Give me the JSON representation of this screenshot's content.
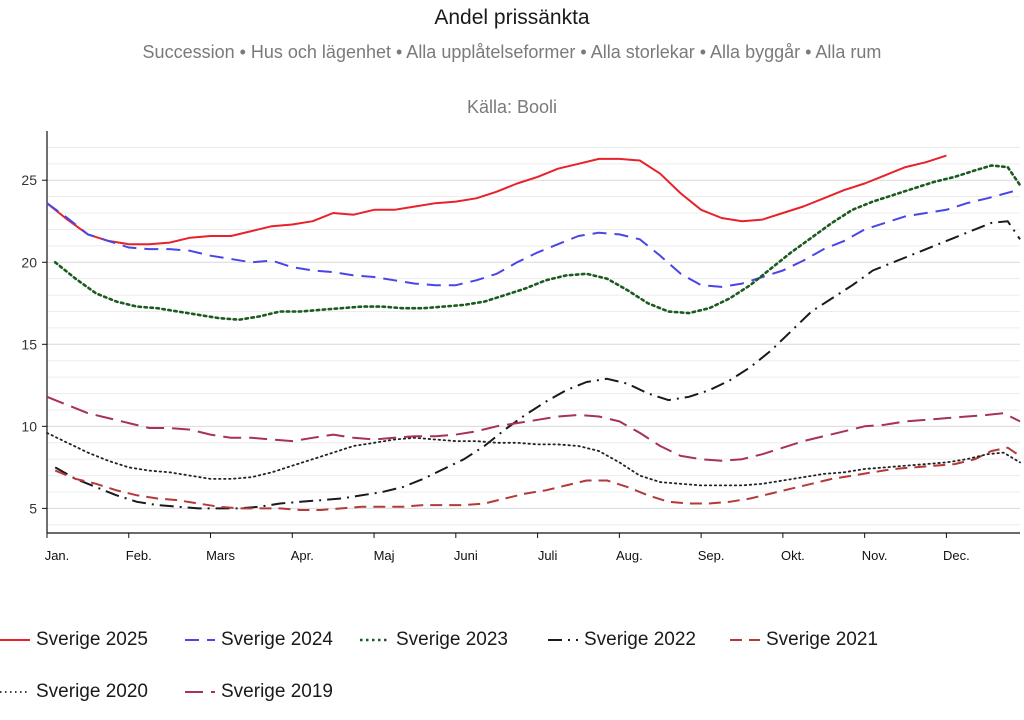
{
  "chart_data": {
    "type": "line",
    "title": "Andel prissänkta",
    "subtitle": "Succession • Hus och lägenhet • Alla upplåtelseformer • Alla storlekar • Alla byggår • Alla rum",
    "source": "Källa: Booli",
    "xlabel": "",
    "ylabel": "",
    "xlim": [
      0,
      11.9
    ],
    "ylim": [
      3.5,
      28
    ],
    "yticks": [
      5,
      10,
      15,
      20,
      25
    ],
    "grid": true,
    "categories": [
      "Jan.",
      "Feb.",
      "Mars",
      "Apr.",
      "Maj",
      "Juni",
      "Juli",
      "Aug.",
      "Sep.",
      "Okt.",
      "Nov.",
      "Dec."
    ],
    "legend_position": "bottom",
    "series": [
      {
        "name": "Sverige 2025",
        "color": "#e8222a",
        "dash": "solid",
        "x": [
          0,
          0.25,
          0.5,
          0.75,
          1,
          1.25,
          1.5,
          1.75,
          2,
          2.25,
          2.5,
          2.75,
          3,
          3.25,
          3.5,
          3.75,
          4,
          4.25,
          4.5,
          4.75,
          5,
          5.25,
          5.5,
          5.75,
          6,
          6.25,
          6.5,
          6.75,
          7,
          7.25,
          7.5,
          7.75,
          8,
          8.25,
          8.5,
          8.75,
          9,
          9.25,
          9.5,
          9.75,
          10,
          10.25,
          10.5,
          10.75,
          11
        ],
        "values": [
          23.6,
          22.6,
          21.7,
          21.3,
          21.1,
          21.1,
          21.2,
          21.5,
          21.6,
          21.6,
          21.9,
          22.2,
          22.3,
          22.5,
          23.0,
          22.9,
          23.2,
          23.2,
          23.4,
          23.6,
          23.7,
          23.9,
          24.3,
          24.8,
          25.2,
          25.7,
          26.0,
          26.3,
          26.3,
          26.2,
          25.4,
          24.2,
          23.2,
          22.7,
          22.5,
          22.6,
          23.0,
          23.4,
          23.9,
          24.4,
          24.8,
          25.3,
          25.8,
          26.1,
          26.5
        ]
      },
      {
        "name": "Sverige 2024",
        "color": "#4a45e6",
        "dash": "dash",
        "x": [
          0,
          0.25,
          0.5,
          0.75,
          1,
          1.25,
          1.5,
          1.75,
          2,
          2.25,
          2.5,
          2.75,
          3,
          3.25,
          3.5,
          3.75,
          4,
          4.25,
          4.5,
          4.75,
          5,
          5.25,
          5.5,
          5.75,
          6,
          6.25,
          6.5,
          6.75,
          7,
          7.25,
          7.5,
          7.75,
          8,
          8.25,
          8.5,
          8.75,
          9,
          9.25,
          9.5,
          9.75,
          10,
          10.25,
          10.5,
          10.75,
          11,
          11.25,
          11.5,
          11.65,
          11.8,
          11.9
        ],
        "values": [
          23.6,
          22.7,
          21.7,
          21.3,
          20.9,
          20.8,
          20.8,
          20.7,
          20.4,
          20.2,
          20.0,
          20.1,
          19.7,
          19.5,
          19.4,
          19.2,
          19.1,
          18.9,
          18.7,
          18.6,
          18.6,
          18.9,
          19.3,
          20.0,
          20.6,
          21.1,
          21.6,
          21.8,
          21.7,
          21.4,
          20.4,
          19.3,
          18.6,
          18.5,
          18.7,
          19.1,
          19.5,
          20.1,
          20.8,
          21.3,
          22.0,
          22.4,
          22.8,
          23.0,
          23.2,
          23.6,
          23.9,
          24.1,
          24.3,
          24.5
        ]
      },
      {
        "name": "Sverige 2023",
        "color": "#1a5c1e",
        "dash": "dot",
        "x": [
          0.1,
          0.35,
          0.6,
          0.85,
          1.1,
          1.35,
          1.6,
          1.85,
          2.1,
          2.35,
          2.6,
          2.85,
          3.1,
          3.35,
          3.6,
          3.85,
          4.1,
          4.35,
          4.6,
          4.85,
          5.1,
          5.35,
          5.6,
          5.85,
          6.1,
          6.35,
          6.6,
          6.85,
          7.1,
          7.35,
          7.6,
          7.85,
          8.1,
          8.35,
          8.6,
          8.85,
          9.1,
          9.35,
          9.6,
          9.85,
          10.1,
          10.35,
          10.6,
          10.85,
          11.1,
          11.35,
          11.55,
          11.75,
          11.9
        ],
        "values": [
          20.0,
          19.0,
          18.1,
          17.6,
          17.3,
          17.2,
          17.0,
          16.8,
          16.6,
          16.5,
          16.7,
          17.0,
          17.0,
          17.1,
          17.2,
          17.3,
          17.3,
          17.2,
          17.2,
          17.3,
          17.4,
          17.6,
          18.0,
          18.4,
          18.9,
          19.2,
          19.3,
          19.0,
          18.3,
          17.5,
          17.0,
          16.9,
          17.2,
          17.8,
          18.6,
          19.6,
          20.6,
          21.5,
          22.4,
          23.2,
          23.7,
          24.1,
          24.5,
          24.9,
          25.2,
          25.6,
          25.9,
          25.8,
          24.7
        ]
      },
      {
        "name": "Sverige 2022",
        "color": "#1a1a1a",
        "dash": "dashdot",
        "x": [
          0.1,
          0.35,
          0.6,
          0.85,
          1.1,
          1.35,
          1.6,
          1.85,
          2.1,
          2.35,
          2.6,
          2.85,
          3.1,
          3.35,
          3.6,
          3.85,
          4.1,
          4.35,
          4.6,
          4.85,
          5.1,
          5.35,
          5.6,
          5.85,
          6.1,
          6.35,
          6.6,
          6.85,
          7.1,
          7.35,
          7.6,
          7.85,
          8.1,
          8.35,
          8.6,
          8.85,
          9.1,
          9.35,
          9.6,
          9.85,
          10.1,
          10.35,
          10.6,
          10.85,
          11.1,
          11.35,
          11.55,
          11.75,
          11.9
        ],
        "values": [
          7.5,
          6.8,
          6.3,
          5.8,
          5.4,
          5.2,
          5.1,
          5.0,
          5.0,
          5.0,
          5.1,
          5.3,
          5.4,
          5.5,
          5.6,
          5.8,
          6.0,
          6.3,
          6.8,
          7.4,
          8.0,
          8.8,
          9.8,
          10.7,
          11.5,
          12.2,
          12.7,
          12.9,
          12.6,
          12.0,
          11.6,
          11.8,
          12.2,
          12.8,
          13.6,
          14.6,
          15.8,
          17.0,
          17.8,
          18.6,
          19.5,
          20.0,
          20.5,
          21.0,
          21.5,
          22.0,
          22.4,
          22.5,
          21.4
        ]
      },
      {
        "name": "Sverige 2021",
        "color": "#b23a3a",
        "dash": "longdash",
        "x": [
          0.1,
          0.35,
          0.6,
          0.85,
          1.1,
          1.35,
          1.6,
          1.85,
          2.1,
          2.35,
          2.6,
          2.85,
          3.1,
          3.35,
          3.6,
          3.85,
          4.1,
          4.35,
          4.6,
          4.85,
          5.1,
          5.35,
          5.6,
          5.85,
          6.1,
          6.35,
          6.6,
          6.85,
          7.1,
          7.35,
          7.6,
          7.85,
          8.1,
          8.35,
          8.6,
          8.85,
          9.1,
          9.35,
          9.6,
          9.85,
          10.1,
          10.35,
          10.6,
          10.85,
          11.1,
          11.35,
          11.55,
          11.75,
          11.9
        ],
        "values": [
          7.3,
          6.8,
          6.5,
          6.1,
          5.8,
          5.6,
          5.5,
          5.3,
          5.1,
          5.0,
          5.0,
          5.0,
          4.9,
          4.9,
          5.0,
          5.1,
          5.1,
          5.1,
          5.2,
          5.2,
          5.2,
          5.3,
          5.6,
          5.9,
          6.1,
          6.4,
          6.7,
          6.7,
          6.3,
          5.8,
          5.4,
          5.3,
          5.3,
          5.4,
          5.6,
          5.9,
          6.2,
          6.5,
          6.8,
          7.0,
          7.2,
          7.4,
          7.5,
          7.6,
          7.7,
          8.0,
          8.5,
          8.7,
          8.2
        ]
      },
      {
        "name": "Sverige 2020",
        "color": "#222222",
        "dash": "finedot",
        "x": [
          0,
          0.25,
          0.5,
          0.75,
          1,
          1.25,
          1.5,
          1.75,
          2,
          2.25,
          2.5,
          2.75,
          3,
          3.25,
          3.5,
          3.75,
          4,
          4.25,
          4.5,
          4.75,
          5,
          5.25,
          5.5,
          5.75,
          6,
          6.25,
          6.5,
          6.75,
          7,
          7.25,
          7.5,
          7.75,
          8,
          8.25,
          8.5,
          8.75,
          9,
          9.25,
          9.5,
          9.75,
          10,
          10.25,
          10.5,
          10.75,
          11,
          11.25,
          11.5,
          11.7,
          11.9
        ],
        "values": [
          9.6,
          9.0,
          8.4,
          7.9,
          7.5,
          7.3,
          7.2,
          7.0,
          6.8,
          6.8,
          6.9,
          7.2,
          7.6,
          8.0,
          8.4,
          8.8,
          9.0,
          9.2,
          9.3,
          9.2,
          9.1,
          9.1,
          9.0,
          9.0,
          8.9,
          8.9,
          8.8,
          8.5,
          7.8,
          7.0,
          6.6,
          6.5,
          6.4,
          6.4,
          6.4,
          6.5,
          6.7,
          6.9,
          7.1,
          7.2,
          7.4,
          7.5,
          7.6,
          7.7,
          7.8,
          8.0,
          8.3,
          8.4,
          7.8
        ]
      },
      {
        "name": "Sverige 2019",
        "color": "#a8305a",
        "dash": "longdash2",
        "x": [
          0,
          0.25,
          0.5,
          0.75,
          1,
          1.25,
          1.5,
          1.75,
          2,
          2.25,
          2.5,
          2.75,
          3,
          3.25,
          3.5,
          3.75,
          4,
          4.25,
          4.5,
          4.75,
          5,
          5.25,
          5.5,
          5.75,
          6,
          6.25,
          6.5,
          6.75,
          7,
          7.25,
          7.5,
          7.75,
          8,
          8.25,
          8.5,
          8.75,
          9,
          9.25,
          9.5,
          9.75,
          10,
          10.25,
          10.5,
          10.75,
          11,
          11.25,
          11.5,
          11.7,
          11.9
        ],
        "values": [
          11.8,
          11.3,
          10.8,
          10.5,
          10.2,
          9.9,
          9.9,
          9.8,
          9.5,
          9.3,
          9.3,
          9.2,
          9.1,
          9.3,
          9.5,
          9.3,
          9.2,
          9.3,
          9.4,
          9.4,
          9.5,
          9.7,
          10.0,
          10.2,
          10.4,
          10.6,
          10.7,
          10.6,
          10.3,
          9.6,
          8.8,
          8.2,
          8.0,
          7.9,
          8.0,
          8.3,
          8.7,
          9.1,
          9.4,
          9.7,
          10.0,
          10.1,
          10.3,
          10.4,
          10.5,
          10.6,
          10.7,
          10.8,
          10.3
        ]
      }
    ]
  }
}
